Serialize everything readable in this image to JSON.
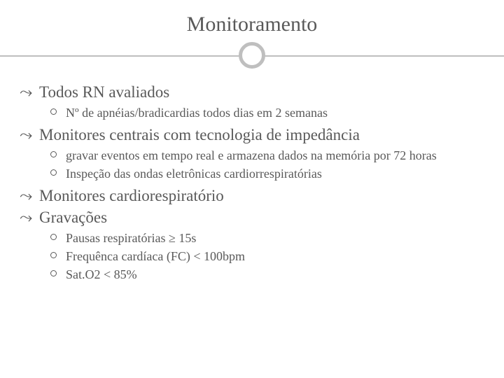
{
  "title": "Monitoramento",
  "items": [
    {
      "text": "Todos RN avaliados",
      "sub": [
        "Nº de apnéias/bradicardias todos dias em 2 semanas"
      ]
    },
    {
      "text": "Monitores centrais com tecnologia de impedância",
      "sub": [
        "gravar eventos em tempo real e armazena dados na memória por 72 horas",
        "Inspeção das ondas eletrônicas cardiorrespiratórias"
      ]
    },
    {
      "text": "Monitores cardiorespiratório",
      "sub": []
    },
    {
      "text": "Gravações",
      "sub": [
        "Pausas respiratórias ≥ 15s",
        "Frequênca cardíaca (FC) < 100bpm",
        "Sat.O2 < 85%"
      ]
    }
  ],
  "style": {
    "l1_bullet": "⤳",
    "title_color": "#595959",
    "text_color": "#595959",
    "line_color": "#bfbfbf",
    "background_color": "#ffffff",
    "title_fontsize": 30,
    "l1_fontsize": 23,
    "l2_fontsize": 18
  }
}
